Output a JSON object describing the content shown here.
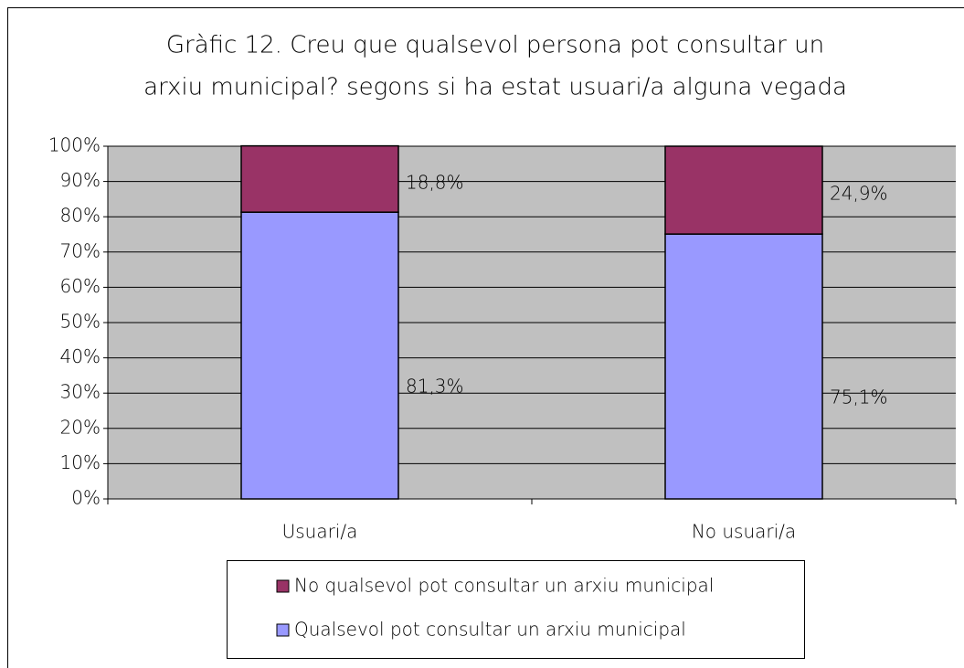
{
  "chart_data": {
    "type": "stacked_bar",
    "title": [
      "Gràfic 12. Creu que qualsevol persona pot consultar un",
      "arxiu municipal? segons si ha estat usuari/a alguna vegada"
    ],
    "categories": [
      "Usuari/a",
      "No usuari/a"
    ],
    "series": [
      {
        "name": "Qualsevol pot consultar un arxiu municipal",
        "color": "#9999ff",
        "values": [
          81.3,
          75.1
        ],
        "value_labels": [
          "81,3%",
          "75,1%"
        ]
      },
      {
        "name": "No qualsevol pot consultar un arxiu municipal",
        "color": "#993366",
        "values": [
          18.8,
          24.9
        ],
        "value_labels": [
          "18,8%",
          "24,9%"
        ]
      }
    ],
    "ylim": [
      0,
      100
    ],
    "yticks": [
      {
        "value": 0,
        "label": "0%"
      },
      {
        "value": 10,
        "label": "10%"
      },
      {
        "value": 20,
        "label": "20%"
      },
      {
        "value": 30,
        "label": "30%"
      },
      {
        "value": 40,
        "label": "40%"
      },
      {
        "value": 50,
        "label": "50%"
      },
      {
        "value": 60,
        "label": "60%"
      },
      {
        "value": 70,
        "label": "70%"
      },
      {
        "value": 80,
        "label": "80%"
      },
      {
        "value": 90,
        "label": "90%"
      },
      {
        "value": 100,
        "label": "100%"
      }
    ],
    "grid": true,
    "plot_background": "#c0c0c0",
    "legend": "bottom"
  }
}
